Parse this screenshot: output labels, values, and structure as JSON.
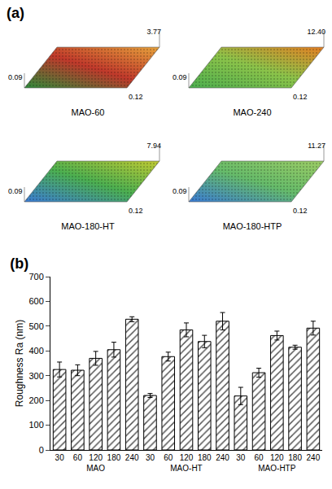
{
  "panel_a": {
    "label": "(a)",
    "images": [
      {
        "title": "MAO-60",
        "y_extent": 0.09,
        "x_extent": 0.12,
        "z_max": 3.77
      },
      {
        "title": "MAO-240",
        "y_extent": 0.09,
        "x_extent": 0.12,
        "z_max": 12.4
      },
      {
        "title": "MAO-180-HT",
        "y_extent": 0.09,
        "x_extent": 0.12,
        "z_max": 7.94
      },
      {
        "title": "MAO-180-HTP",
        "y_extent": 0.09,
        "x_extent": 0.12,
        "z_max": 11.27
      }
    ]
  },
  "chart_data": {
    "type": "bar",
    "title": "(b)",
    "group_labels": [
      "MAO",
      "MAO-HT",
      "MAO-HTP"
    ],
    "categories": [
      "30",
      "60",
      "120",
      "180",
      "240",
      "30",
      "60",
      "120",
      "180",
      "240",
      "30",
      "60",
      "120",
      "180",
      "240"
    ],
    "values": [
      325,
      322,
      370,
      405,
      528,
      220,
      377,
      485,
      438,
      520,
      218,
      312,
      462,
      415,
      492
    ],
    "errors": [
      30,
      22,
      28,
      30,
      10,
      8,
      18,
      28,
      25,
      35,
      35,
      18,
      18,
      8,
      28
    ],
    "color": "#ffffff",
    "marker": "hatch",
    "y_label": "Roughness Ra (nm)",
    "ylim": [
      0,
      700
    ],
    "yticks": [
      0,
      100,
      200,
      300,
      400,
      500,
      600,
      700
    ],
    "grid": false
  }
}
